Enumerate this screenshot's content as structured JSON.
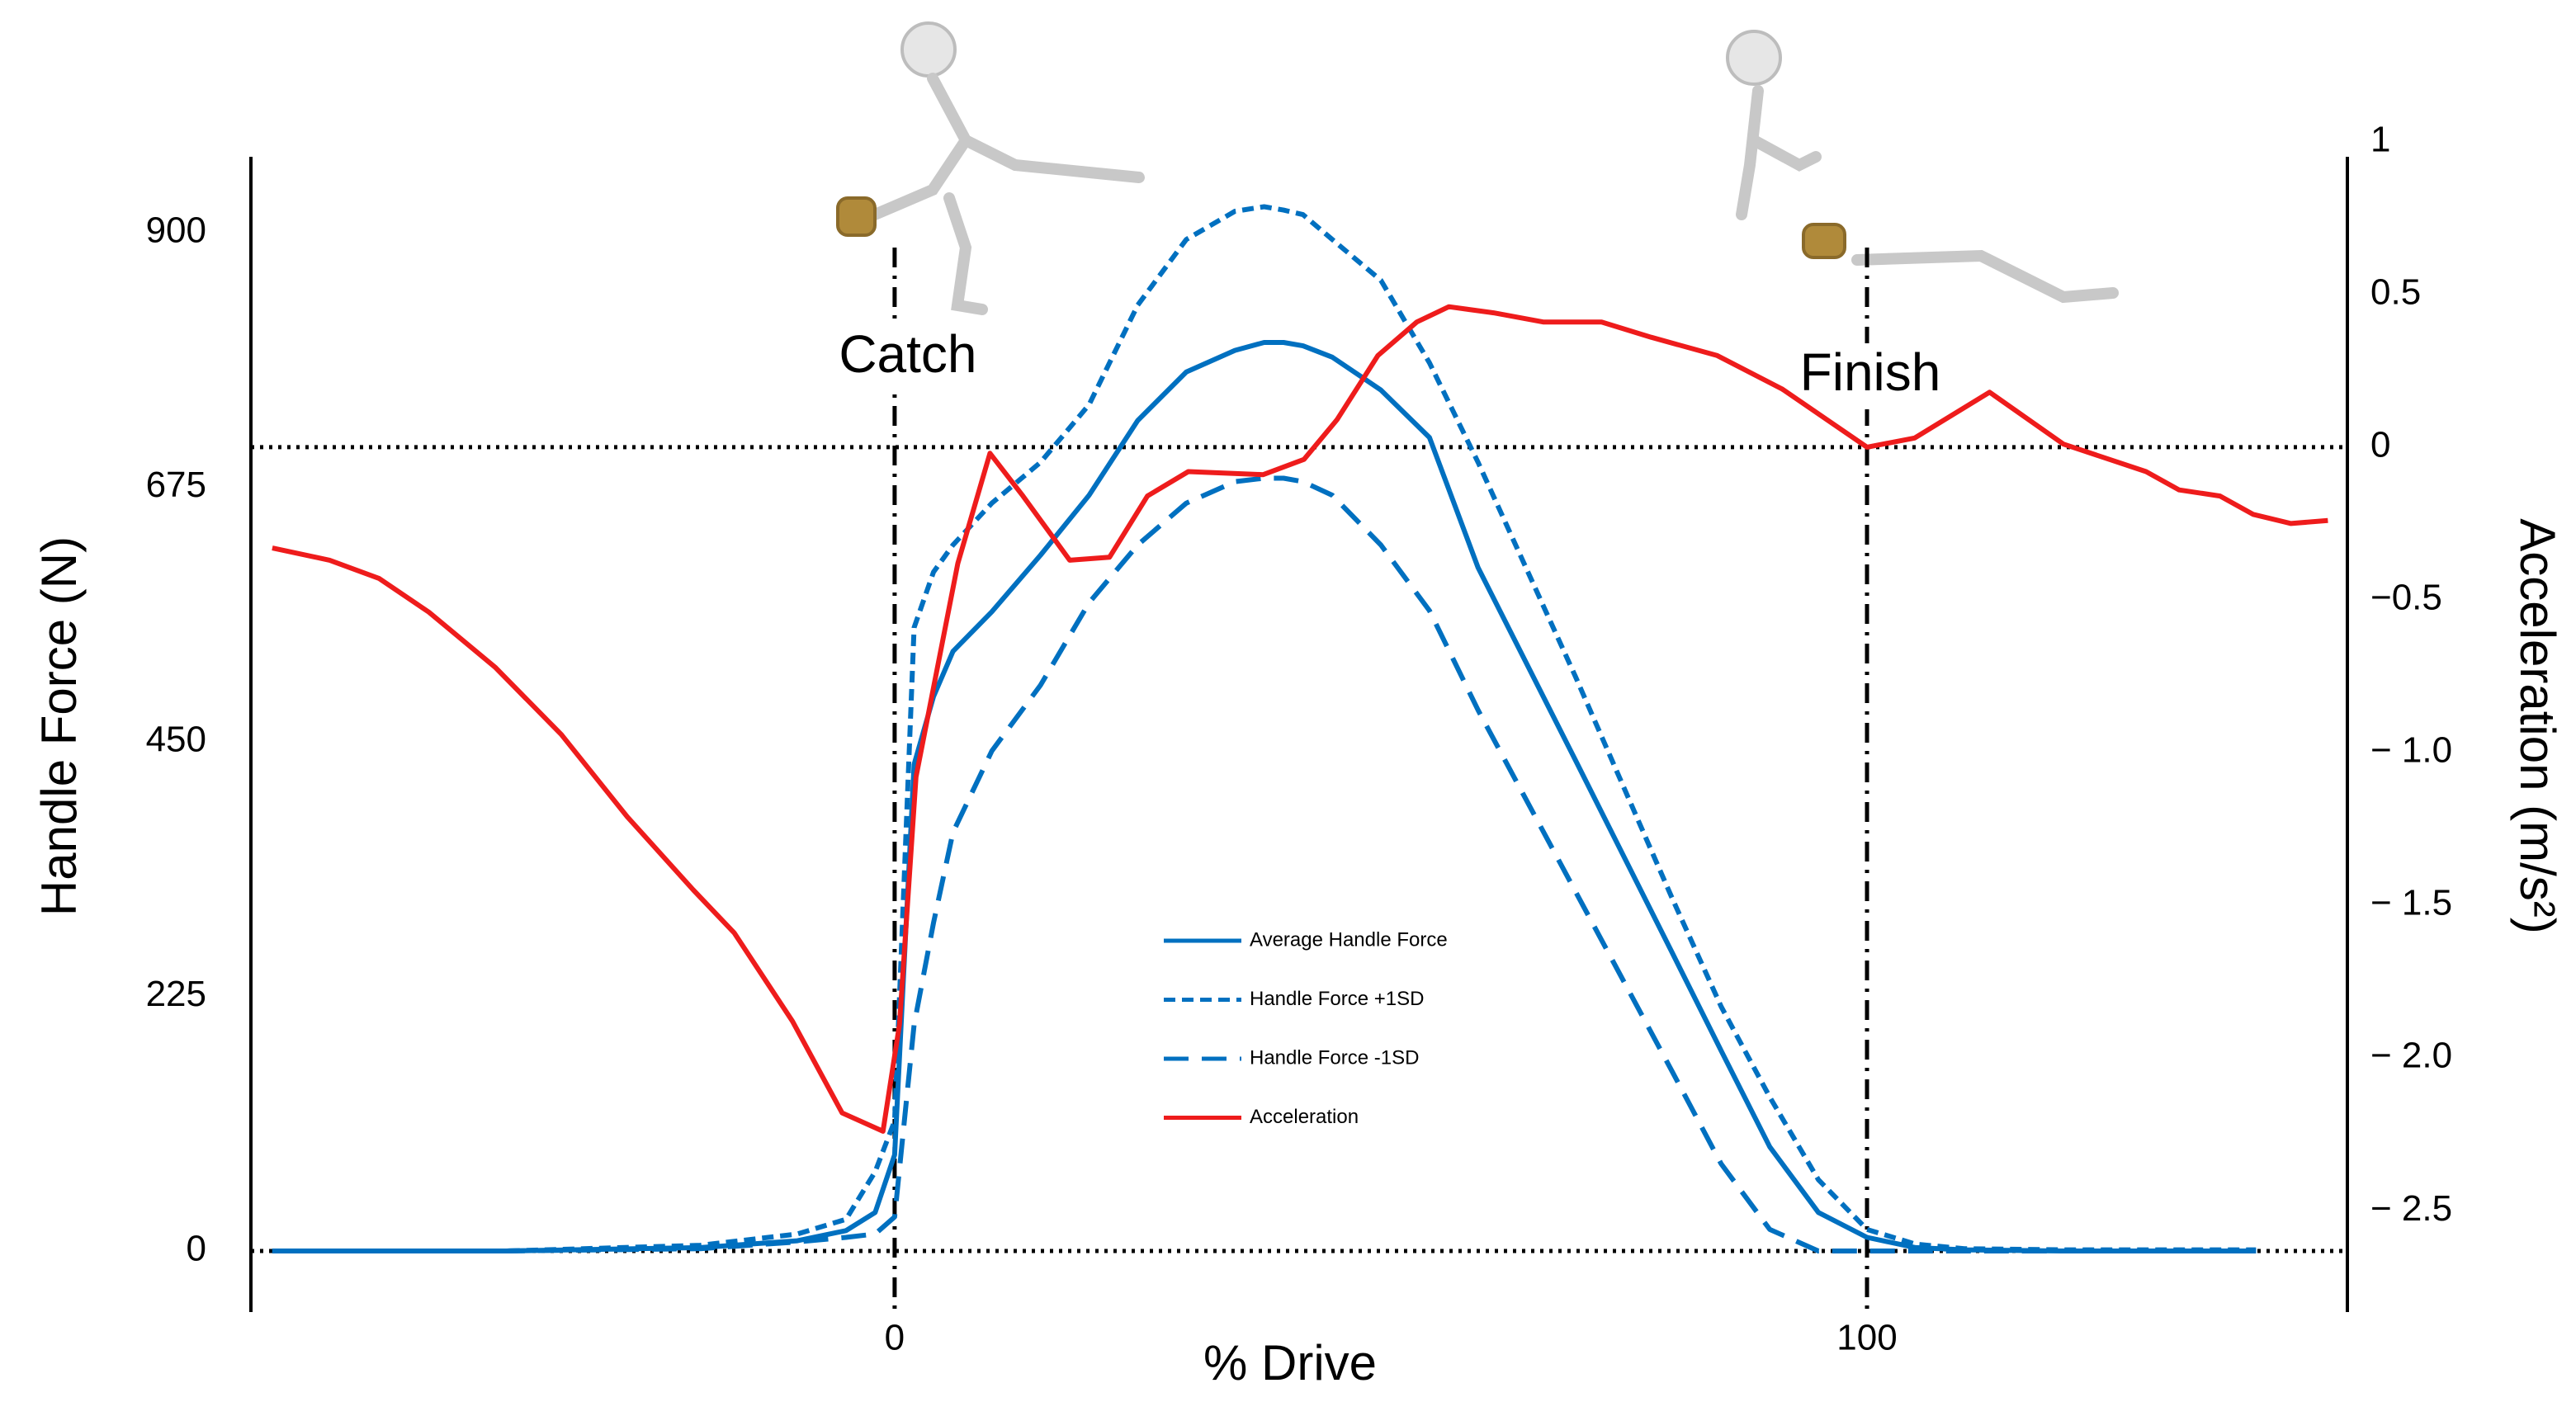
{
  "chart_data": {
    "type": "line",
    "xlabel": "% Drive",
    "ylabel": "Handle Force (N)",
    "y2label": "Acceleration (m/s²)",
    "xlim": [
      -66.2,
      149.4
    ],
    "xticks": [
      0,
      100
    ],
    "ylim": [
      -54,
      989
    ],
    "yticks": [
      0,
      225,
      450,
      675,
      900
    ],
    "y2lim": [
      -2.832,
      1.032
    ],
    "y2ticks": [
      1,
      0.5,
      0,
      {
        "value": -0.5,
        "label": "−0.5"
      },
      {
        "value": -1.0,
        "label": "− 1.0"
      },
      {
        "value": -1.5,
        "label": "− 1.5"
      },
      {
        "value": -2.0,
        "label": "− 2.0"
      },
      {
        "value": -2.5,
        "label": "− 2.5"
      }
    ],
    "vlines": [
      0,
      100
    ],
    "hlines": [
      {
        "axis": "y",
        "value": 0
      },
      {
        "axis": "y2",
        "value": 0
      }
    ],
    "annotations": [
      {
        "text": "Catch",
        "x": 0
      },
      {
        "text": "Finish",
        "x": 100
      }
    ],
    "legend": "center",
    "series": [
      {
        "name": "Average Handle Force",
        "color": "#0070c0",
        "style": "solid",
        "x": [
          -64,
          -40,
          -20,
          -10,
          -5,
          -2,
          0,
          2,
          4,
          6,
          10,
          15,
          20,
          25,
          30,
          35,
          38,
          40,
          42,
          45,
          50,
          55,
          60,
          70,
          80,
          85,
          90,
          95,
          100,
          105,
          110,
          120,
          140
        ],
        "values": [
          0,
          0,
          3,
          9,
          18,
          34,
          85,
          430,
          490,
          530,
          565,
          615,
          668,
          734,
          777,
          796,
          803,
          803,
          800,
          790,
          761,
          719,
          604,
          434,
          263,
          177,
          92,
          34,
          12,
          3,
          1,
          0,
          0
        ]
      },
      {
        "name": "Handle Force +1SD",
        "color": "#0070c0",
        "style": "dotted",
        "x": [
          -64,
          -40,
          -20,
          -10,
          -5,
          -2,
          0,
          2,
          4,
          6,
          10,
          15,
          20,
          25,
          30,
          35,
          38,
          40,
          42,
          45,
          50,
          55,
          60,
          70,
          80,
          85,
          90,
          95,
          100,
          105,
          110,
          120,
          140
        ],
        "values": [
          0,
          0,
          5,
          15,
          28,
          70,
          115,
          551,
          600,
          624,
          661,
          697,
          748,
          836,
          894,
          919,
          923,
          920,
          916,
          894,
          858,
          785,
          697,
          508,
          311,
          216,
          136,
          63,
          19,
          6,
          2,
          1,
          1
        ]
      },
      {
        "name": "Handle Force -1SD",
        "color": "#0070c0",
        "style": "dashed",
        "x": [
          -64,
          -40,
          -20,
          -10,
          -5,
          -2,
          0,
          2,
          4,
          6,
          10,
          15,
          20,
          25,
          30,
          35,
          38,
          40,
          42,
          45,
          50,
          55,
          60,
          70,
          80,
          85,
          90,
          95,
          100,
          105,
          110,
          120,
          140
        ],
        "values": [
          0,
          0,
          2,
          8,
          12,
          15,
          30,
          200,
          290,
          370,
          442,
          500,
          573,
          624,
          661,
          680,
          683,
          683,
          680,
          668,
          624,
          566,
          478,
          318,
          158,
          77,
          19,
          0,
          0,
          0,
          0,
          0,
          0
        ]
      },
      {
        "name": "Acceleration",
        "color": "#ee1c1c",
        "style": "solid",
        "axis": "y2",
        "x": [
          -64,
          -58.1,
          -53.0,
          -47.9,
          -41.1,
          -34.3,
          -27.5,
          -20.7,
          -16.5,
          -10.5,
          -5.4,
          -1.2,
          0.5,
          2.2,
          6.5,
          9.8,
          13.2,
          18.0,
          22.1,
          26.0,
          30.2,
          37.9,
          42.1,
          45.5,
          49.7,
          53.7,
          57.0,
          61.6,
          66.7,
          72.7,
          77.8,
          84.6,
          91.3,
          100,
          104.9,
          112.6,
          120.2,
          128.7,
          132.1,
          136.3,
          139.7,
          143.6,
          147.4
        ],
        "values": [
          -0.33,
          -0.37,
          -0.43,
          -0.54,
          -0.72,
          -0.94,
          -1.21,
          -1.45,
          -1.59,
          -1.88,
          -2.18,
          -2.24,
          -1.89,
          -1.08,
          -0.38,
          -0.02,
          -0.16,
          -0.37,
          -0.36,
          -0.16,
          -0.08,
          -0.09,
          -0.04,
          0.09,
          0.3,
          0.41,
          0.46,
          0.44,
          0.41,
          0.41,
          0.36,
          0.3,
          0.19,
          0,
          0.03,
          0.18,
          0.01,
          -0.08,
          -0.14,
          -0.16,
          -0.22,
          -0.25,
          -0.24
        ]
      }
    ]
  }
}
